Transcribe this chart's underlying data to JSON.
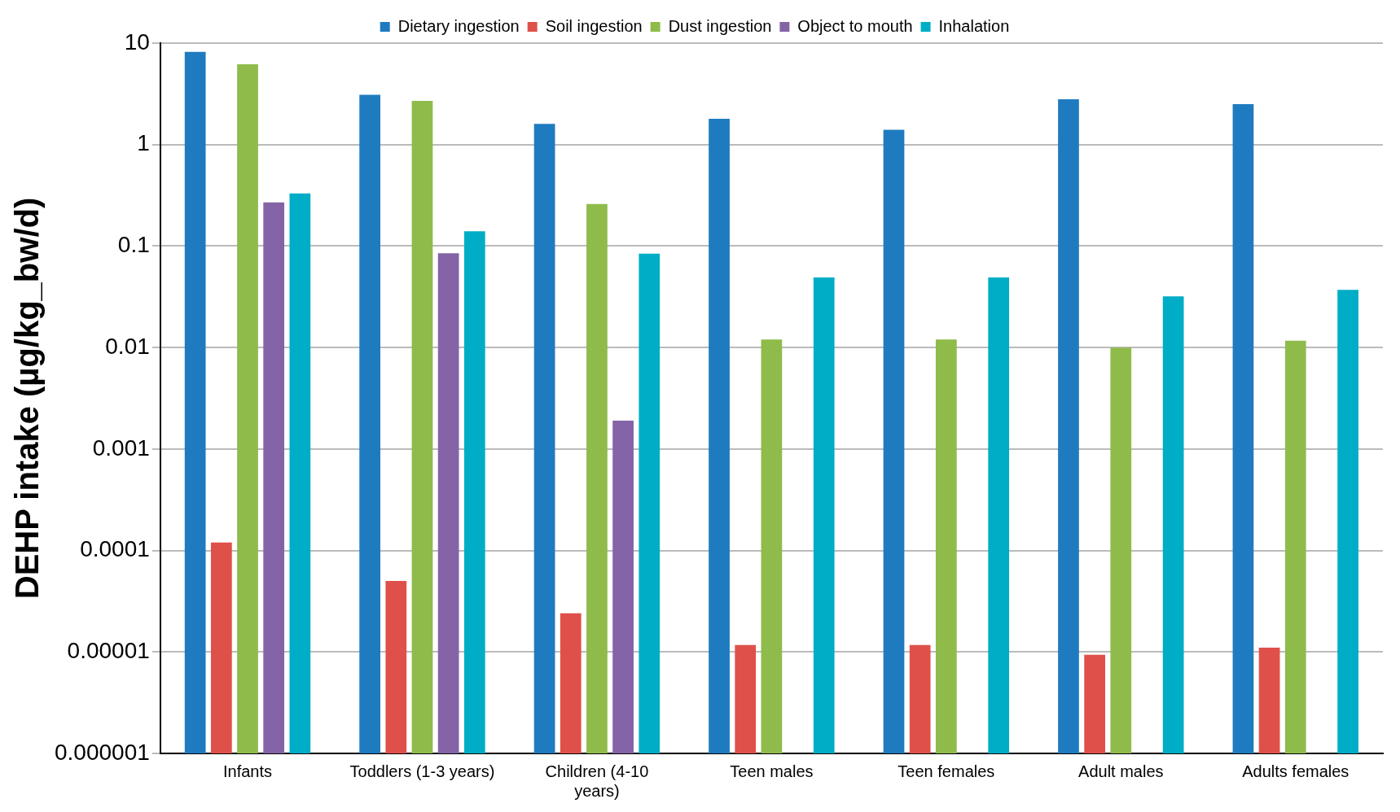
{
  "chart_data": {
    "type": "bar",
    "ylabel": "DEHP intake (µg/kg_bw/d)",
    "categories": [
      "Infants",
      "Toddlers (1-3 years)",
      "Children (4-10 years)",
      "Teen males",
      "Teen females",
      "Adult males",
      "Adults females"
    ],
    "series": [
      {
        "name": "Dietary ingestion",
        "color": "#1f7bbf",
        "values": [
          8.2,
          3.1,
          1.6,
          1.8,
          1.4,
          2.8,
          2.5
        ]
      },
      {
        "name": "Soil ingestion",
        "color": "#e0504a",
        "values": [
          0.00012,
          5e-05,
          2.4e-05,
          1.17e-05,
          1.17e-05,
          9.4e-06,
          1.1e-05
        ]
      },
      {
        "name": "Dust ingestion",
        "color": "#8fbb4b",
        "values": [
          6.2,
          2.7,
          0.26,
          0.012,
          0.012,
          0.01,
          0.0117
        ]
      },
      {
        "name": "Object to mouth",
        "color": "#8464a6",
        "values": [
          0.27,
          0.085,
          0.0019,
          null,
          null,
          null,
          null
        ]
      },
      {
        "name": "Inhalation",
        "color": "#00adc6",
        "values": [
          0.33,
          0.14,
          0.084,
          0.049,
          0.049,
          0.032,
          0.037
        ]
      }
    ],
    "log": "y",
    "ylim": [
      1e-06,
      10
    ],
    "yticks": [
      {
        "value": 1e-06,
        "label": "0.000001"
      },
      {
        "value": 1e-05,
        "label": "0.00001"
      },
      0.0001,
      0.001,
      0.01,
      0.1,
      1,
      10
    ],
    "grid": "y",
    "legend": "top"
  }
}
